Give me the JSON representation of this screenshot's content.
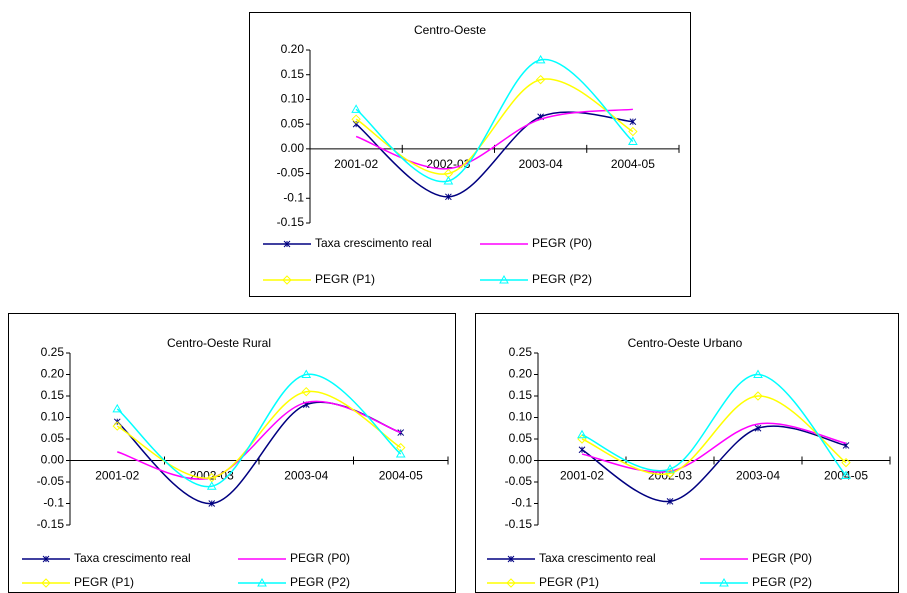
{
  "chart_data": [
    {
      "type": "line",
      "title": "Centro-Oeste",
      "categories": [
        "2001-02",
        "2002-03",
        "2003-04",
        "2004-05"
      ],
      "series": [
        {
          "name": "Taxa crescimento real",
          "color": "#000080",
          "values": [
            0.05,
            -0.097,
            0.065,
            0.055
          ]
        },
        {
          "name": "PEGR (P0)",
          "color": "#ff00ff",
          "values": [
            0.025,
            -0.04,
            0.06,
            0.08
          ]
        },
        {
          "name": "PEGR (P1)",
          "color": "#ffff00",
          "values": [
            0.06,
            -0.05,
            0.14,
            0.035
          ]
        },
        {
          "name": "PEGR (P2)",
          "color": "#00ffff",
          "values": [
            0.08,
            -0.065,
            0.18,
            0.015
          ]
        }
      ],
      "ylim": [
        -0.15,
        0.2
      ],
      "yticks": [
        -0.15,
        -0.1,
        -0.05,
        {
          "value": 0,
          "label": "0.00"
        },
        0.05,
        {
          "value": 0.1,
          "label": "0.10"
        },
        0.15,
        {
          "value": 0.2,
          "label": "0.20"
        }
      ]
    },
    {
      "type": "line",
      "title": "Centro-Oeste Rural",
      "categories": [
        "2001-02",
        "2002-03",
        "2003-04",
        "2004-05"
      ],
      "series": [
        {
          "name": "Taxa crescimento real",
          "color": "#000080",
          "values": [
            0.09,
            -0.1,
            0.13,
            0.065
          ]
        },
        {
          "name": "PEGR (P0)",
          "color": "#ff00ff",
          "values": [
            0.02,
            -0.04,
            0.135,
            0.065
          ]
        },
        {
          "name": "PEGR (P1)",
          "color": "#ffff00",
          "values": [
            0.08,
            -0.04,
            0.16,
            0.03
          ]
        },
        {
          "name": "PEGR (P2)",
          "color": "#00ffff",
          "values": [
            0.12,
            -0.06,
            0.2,
            0.015
          ]
        }
      ],
      "ylim": [
        -0.15,
        0.25
      ],
      "yticks": [
        -0.15,
        -0.1,
        -0.05,
        {
          "value": 0,
          "label": "0.00"
        },
        0.05,
        {
          "value": 0.1,
          "label": "0.10"
        },
        0.15,
        {
          "value": 0.2,
          "label": "0.20"
        },
        0.25
      ]
    },
    {
      "type": "line",
      "title": "Centro-Oeste Urbano",
      "categories": [
        "2001-02",
        "2002-03",
        "2003-04",
        "2004-05"
      ],
      "series": [
        {
          "name": "Taxa crescimento real",
          "color": "#000080",
          "values": [
            0.025,
            -0.095,
            0.075,
            0.035
          ]
        },
        {
          "name": "PEGR (P0)",
          "color": "#ff00ff",
          "values": [
            0.015,
            -0.025,
            0.085,
            0.04
          ]
        },
        {
          "name": "PEGR (P1)",
          "color": "#ffff00",
          "values": [
            0.05,
            -0.03,
            0.15,
            -0.005
          ]
        },
        {
          "name": "PEGR (P2)",
          "color": "#00ffff",
          "values": [
            0.06,
            -0.02,
            0.2,
            -0.035
          ]
        }
      ],
      "ylim": [
        -0.15,
        0.25
      ],
      "yticks": [
        -0.15,
        -0.1,
        -0.05,
        {
          "value": 0,
          "label": "0.00"
        },
        0.05,
        {
          "value": 0.1,
          "label": "0.10"
        },
        0.15,
        {
          "value": 0.2,
          "label": "0.20"
        },
        0.25
      ]
    }
  ]
}
